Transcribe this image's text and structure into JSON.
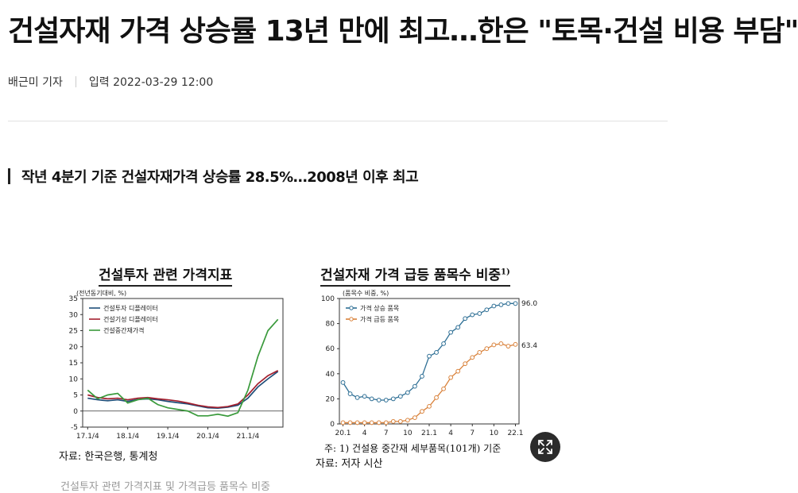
{
  "article": {
    "headline": "건설자재 가격 상승률 13년 만에 최고…한은 \"토목·건설 비용 부담\"",
    "reporter": "배근미 기자",
    "published": "입력 2022-03-29 12:00",
    "subheadline": "작년 4분기 기준 건설자재가격 상승률 28.5%…2008년 이후 최고",
    "caption": "건설투자 관련 가격지표 및 가격급등 품목수 비중"
  },
  "figures": {
    "left": {
      "title": "건설투자 관련 가격지표",
      "unit": "(전년동기대비, %)",
      "source": "자료: 한국은행, 통계청"
    },
    "right": {
      "title": "건설자재 가격 급등 품목수 비중",
      "title_sup": "1)",
      "unit": "(품목수 비중, %)",
      "note": "주: 1) 건설용 중간재 세부품목(101개) 기준",
      "source": "자료: 저자 시산",
      "end_label_1": "96.0",
      "end_label_2": "63.4"
    }
  },
  "chart_data": [
    {
      "type": "line",
      "title": "건설투자 관련 가격지표",
      "ylabel": "(전년동기대비, %)",
      "ylim": [
        -5,
        35
      ],
      "yticks": [
        -5,
        0,
        5,
        10,
        15,
        20,
        25,
        30,
        35
      ],
      "xticks": [
        "17.1/4",
        "18.1/4",
        "19.1/4",
        "20.1/4",
        "21.1/4"
      ],
      "x": [
        "17.1/4",
        "17.2/4",
        "17.3/4",
        "17.4/4",
        "18.1/4",
        "18.2/4",
        "18.3/4",
        "18.4/4",
        "19.1/4",
        "19.2/4",
        "19.3/4",
        "19.4/4",
        "20.1/4",
        "20.2/4",
        "20.3/4",
        "20.4/4",
        "21.1/4",
        "21.2/4",
        "21.3/4",
        "21.4/4"
      ],
      "legend": "top-left",
      "grid": false,
      "series": [
        {
          "name": "건설투자 디플레이터",
          "color": "#1f4e79",
          "values": [
            4.0,
            3.5,
            3.2,
            3.5,
            3.0,
            3.6,
            3.8,
            3.5,
            3.0,
            2.6,
            2.2,
            1.6,
            1.0,
            0.9,
            1.2,
            1.8,
            4.0,
            7.5,
            10.0,
            12.3
          ]
        },
        {
          "name": "건설기성 디플레이터",
          "color": "#a31f2e",
          "values": [
            5.0,
            4.2,
            3.8,
            4.0,
            3.5,
            4.0,
            4.2,
            3.8,
            3.5,
            3.1,
            2.5,
            1.8,
            1.3,
            1.1,
            1.4,
            2.2,
            5.0,
            8.5,
            11.0,
            12.6
          ]
        },
        {
          "name": "건설중간재가격",
          "color": "#3a9a3c",
          "values": [
            6.5,
            3.8,
            5.0,
            5.5,
            2.5,
            3.5,
            4.0,
            2.0,
            1.0,
            0.5,
            0.0,
            -1.5,
            -1.5,
            -1.0,
            -1.6,
            -0.5,
            6.5,
            17.0,
            25.0,
            28.5
          ]
        }
      ]
    },
    {
      "type": "line",
      "title": "건설자재 가격 급등 품목수 비중",
      "ylabel": "(품목수 비중, %)",
      "ylim": [
        0,
        100
      ],
      "yticks": [
        0,
        20,
        40,
        60,
        80,
        100
      ],
      "xticks": [
        "20.1",
        "4",
        "7",
        "10",
        "21.1",
        "4",
        "7",
        "10",
        "22.1"
      ],
      "legend": "top-left",
      "grid": false,
      "x": [
        "20.1",
        "20.2",
        "20.3",
        "20.4",
        "20.5",
        "20.6",
        "20.7",
        "20.8",
        "20.9",
        "20.10",
        "20.11",
        "20.12",
        "21.1",
        "21.2",
        "21.3",
        "21.4",
        "21.5",
        "21.6",
        "21.7",
        "21.8",
        "21.9",
        "21.10",
        "21.11",
        "21.12",
        "22.1"
      ],
      "series": [
        {
          "name": "가격 상승 품목",
          "color": "#2e6f95",
          "marker": "circle",
          "values": [
            33,
            24,
            21,
            22,
            20,
            19,
            19,
            20,
            22,
            25,
            30,
            38,
            54,
            57,
            64,
            73,
            77,
            84,
            87,
            88,
            91,
            94,
            95,
            96,
            96
          ]
        },
        {
          "name": "가격 급등 품목",
          "color": "#d9823b",
          "marker": "circle",
          "values": [
            1,
            1,
            1,
            1,
            1,
            1,
            1,
            2,
            2,
            3,
            5,
            10,
            14,
            21,
            28,
            37,
            42,
            48,
            53,
            57,
            60,
            63,
            64,
            62,
            63.4
          ]
        }
      ]
    }
  ]
}
